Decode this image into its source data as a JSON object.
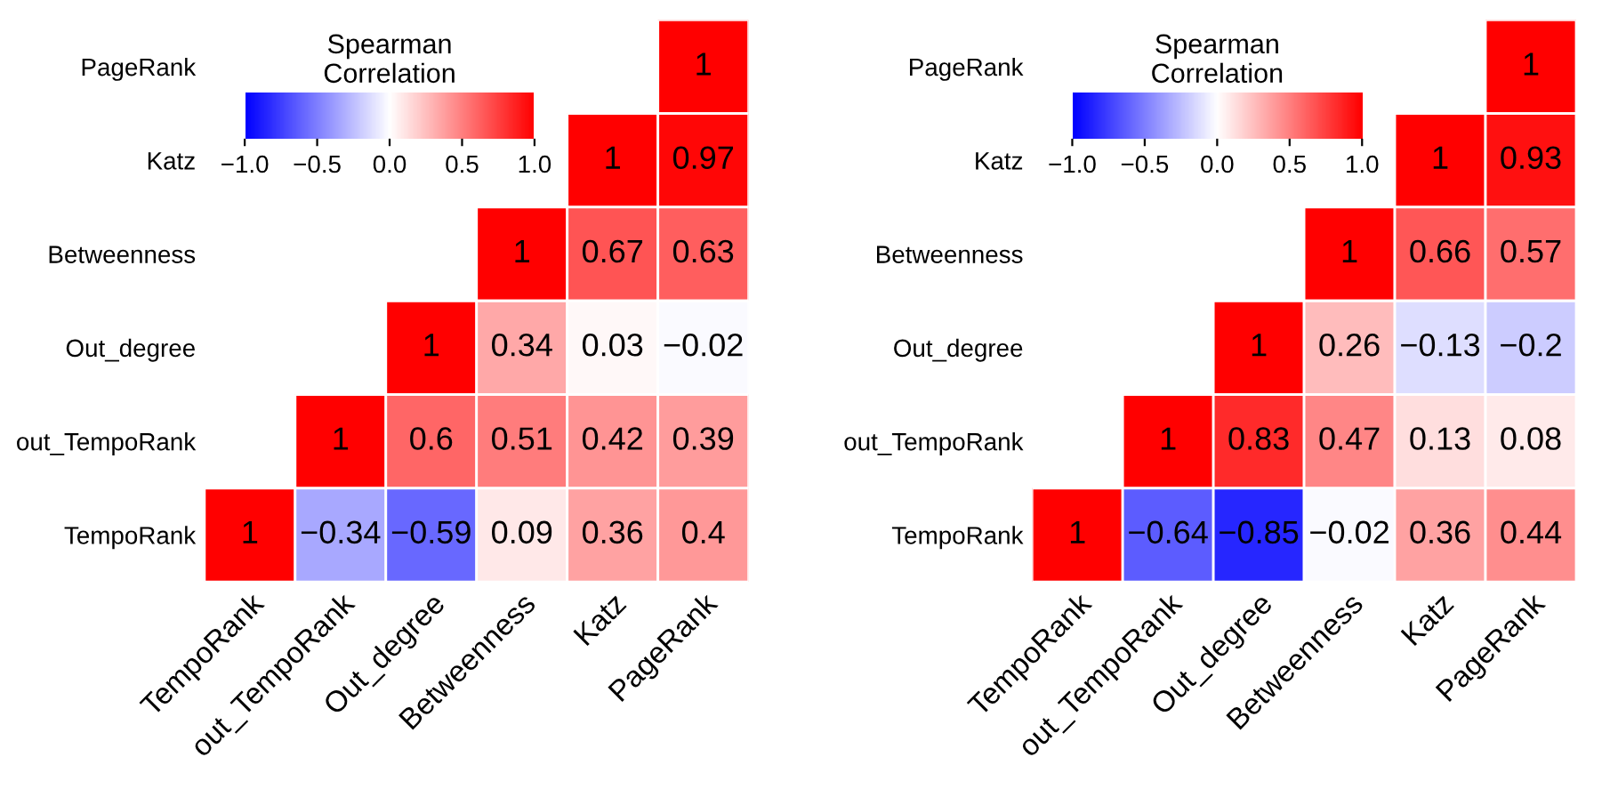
{
  "chart_data": [
    {
      "type": "heatmap",
      "clabel": "Spearman\nCorrelation",
      "data_labels": true,
      "categories": [
        "TempoRank",
        "out_TempoRank",
        "Out_degree",
        "Betweenness",
        "Katz",
        "PageRank"
      ],
      "y_categories": [
        "PageRank",
        "Katz",
        "Betweenness",
        "Out_degree",
        "out_TempoRank",
        "TempoRank"
      ],
      "cells": [
        [
          null,
          null,
          null,
          null,
          null,
          1
        ],
        [
          null,
          null,
          null,
          null,
          1,
          0.97
        ],
        [
          null,
          null,
          null,
          1,
          0.67,
          0.63
        ],
        [
          null,
          null,
          1,
          0.34,
          0.03,
          -0.02
        ],
        [
          null,
          1,
          0.6,
          0.51,
          0.42,
          0.39
        ],
        [
          1,
          -0.34,
          -0.59,
          0.09,
          0.36,
          0.4
        ]
      ],
      "clim": [
        -1,
        1
      ],
      "cticks": [
        {
          "value": -1,
          "label": "−1.0"
        },
        {
          "value": -0.5,
          "label": "−0.5"
        },
        {
          "value": 0,
          "label": "0.0"
        },
        {
          "value": 0.5,
          "label": "0.5"
        },
        {
          "value": 1,
          "label": "1.0"
        }
      ]
    },
    {
      "type": "heatmap",
      "clabel": "Spearman\nCorrelation",
      "data_labels": true,
      "categories": [
        "TempoRank",
        "out_TempoRank",
        "Out_degree",
        "Betweenness",
        "Katz",
        "PageRank"
      ],
      "y_categories": [
        "PageRank",
        "Katz",
        "Betweenness",
        "Out_degree",
        "out_TempoRank",
        "TempoRank"
      ],
      "cells": [
        [
          null,
          null,
          null,
          null,
          null,
          1
        ],
        [
          null,
          null,
          null,
          null,
          1,
          0.93
        ],
        [
          null,
          null,
          null,
          1,
          0.66,
          0.57
        ],
        [
          null,
          null,
          1,
          0.26,
          -0.13,
          -0.2
        ],
        [
          null,
          1,
          0.83,
          0.47,
          0.13,
          0.08
        ],
        [
          1,
          -0.64,
          -0.85,
          -0.02,
          0.36,
          0.44
        ]
      ],
      "clim": [
        -1,
        1
      ],
      "cticks": [
        {
          "value": -1,
          "label": "−1.0"
        },
        {
          "value": -0.5,
          "label": "−0.5"
        },
        {
          "value": 0,
          "label": "0.0"
        },
        {
          "value": 0.5,
          "label": "0.5"
        },
        {
          "value": 1,
          "label": "1.0"
        }
      ]
    }
  ]
}
